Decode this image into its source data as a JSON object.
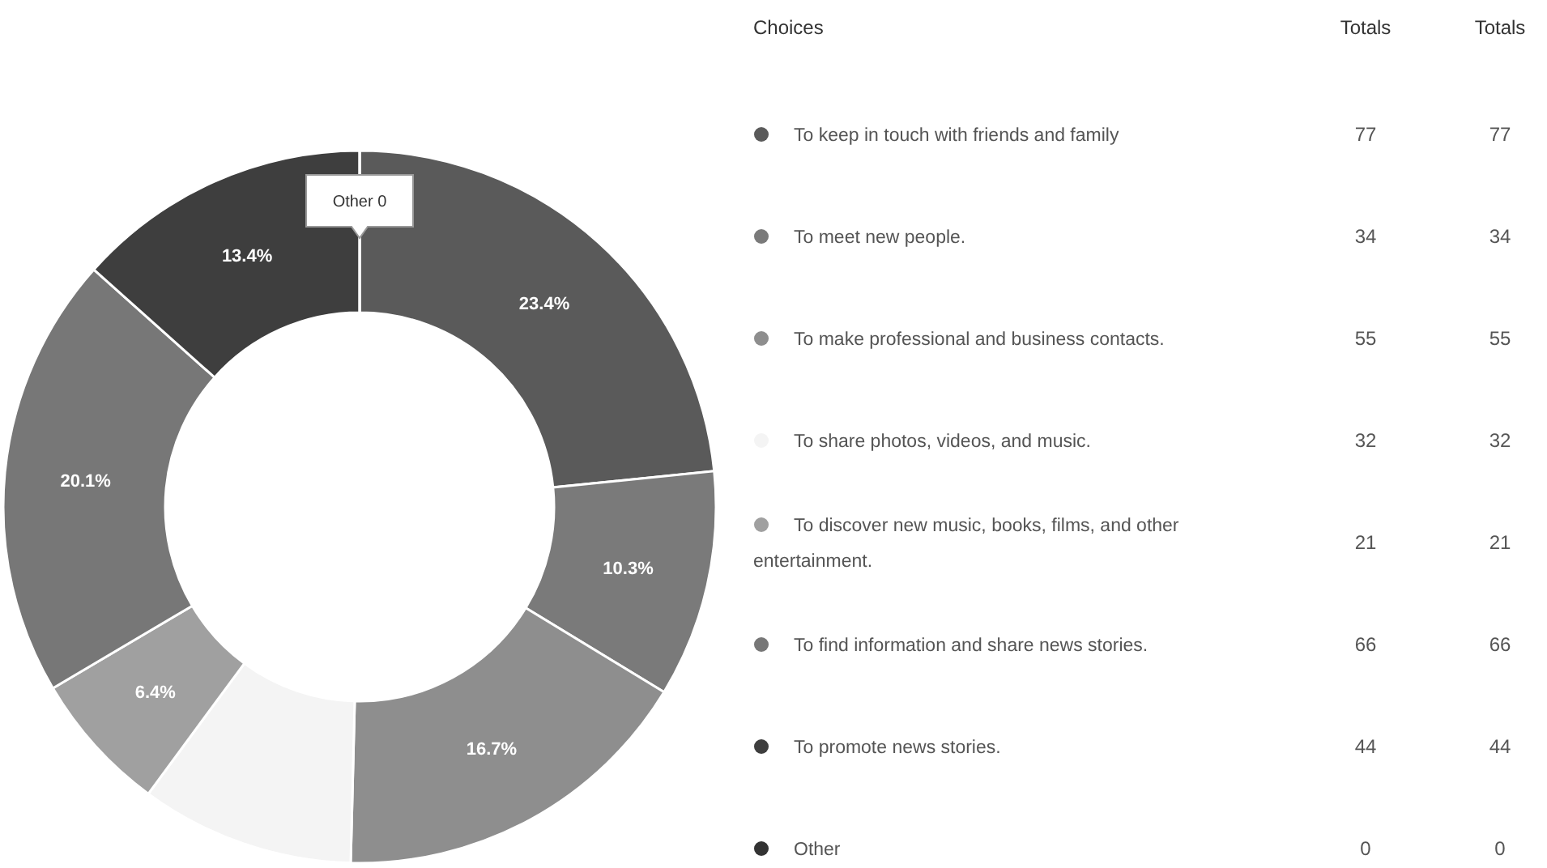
{
  "chart_data": {
    "type": "donut",
    "legend_title": "Choices",
    "categories": [
      "To keep in touch with friends and family",
      "To meet new people.",
      "To make professional and business contacts.",
      "To share photos, videos, and music.",
      "To discover new music, books, films, and other entertainment.",
      "To find information and share news stories.",
      "To promote news stories.",
      "Other"
    ],
    "values": [
      23.4,
      10.3,
      16.7,
      9.7,
      6.4,
      20.1,
      13.4,
      0
    ],
    "colors": [
      "#5a5a5a",
      "#7a7a7a",
      "#8e8e8e",
      "#f4f4f4",
      "#a0a0a0",
      "#777777",
      "#3e3e3e",
      "#333333"
    ],
    "value_labels": [
      "23.4%",
      "10.3%",
      "16.7%",
      null,
      "6.4%",
      "20.1%",
      "13.4%",
      null
    ],
    "data_labels": true,
    "legend": "right",
    "annotations": [
      "Totals",
      "Totals",
      "Other 0",
      "77",
      "77",
      "34",
      "34",
      "55",
      "55",
      "32",
      "32",
      "21",
      "21",
      "66",
      "66",
      "44",
      "44",
      "0",
      "0"
    ]
  }
}
